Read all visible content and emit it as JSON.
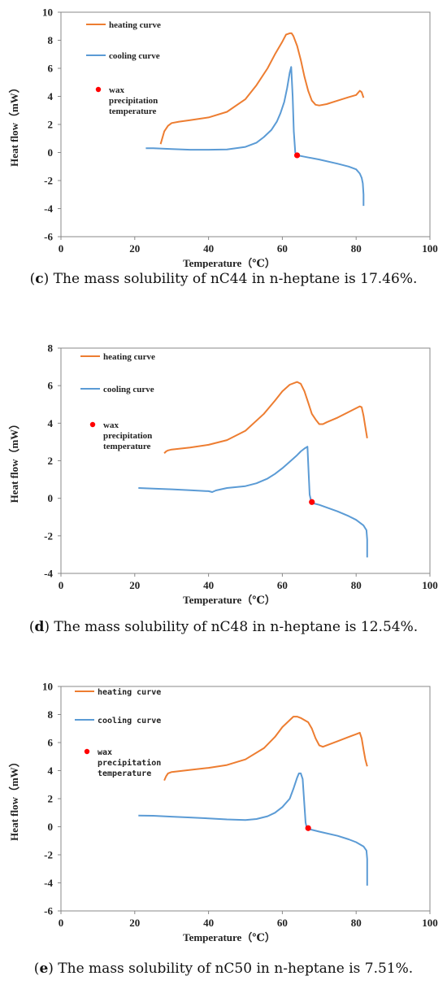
{
  "chart_data": [
    {
      "type": "line",
      "panel": "c",
      "caption_letter": "c",
      "caption_text": " The mass solubility of nC44 in n-heptane is 17.46%.",
      "xlabel": "Temperature（℃）",
      "ylabel": "Heat flow（mW）",
      "xlim": [
        0,
        100
      ],
      "ylim": [
        -6,
        10
      ],
      "xticks": [
        0,
        20,
        40,
        60,
        80,
        100
      ],
      "yticks": [
        -6,
        -4,
        -2,
        0,
        2,
        4,
        6,
        8,
        10
      ],
      "legend_position": "top-left",
      "legend_font": "serif",
      "series": [
        {
          "name": "heating curve",
          "color": "#ED7D31",
          "x": [
            27,
            28,
            29,
            30,
            32,
            35,
            40,
            45,
            50,
            53,
            56,
            58,
            60,
            61,
            62,
            62.5,
            63,
            64,
            65,
            66,
            67,
            68,
            69,
            70,
            72,
            75,
            78,
            80,
            81,
            81.5,
            82
          ],
          "y": [
            0.6,
            1.5,
            1.9,
            2.1,
            2.2,
            2.3,
            2.5,
            2.9,
            3.8,
            4.8,
            6.0,
            7.0,
            7.9,
            8.4,
            8.5,
            8.5,
            8.3,
            7.6,
            6.6,
            5.4,
            4.4,
            3.7,
            3.4,
            3.35,
            3.45,
            3.7,
            3.95,
            4.1,
            4.4,
            4.3,
            3.9
          ]
        },
        {
          "name": "cooling curve",
          "color": "#5B9BD5",
          "x": [
            23,
            25,
            30,
            35,
            40,
            45,
            50,
            53,
            55,
            57,
            58.5,
            59.5,
            60.5,
            61.3,
            62,
            62.4,
            62.8,
            63.1,
            63.5,
            64,
            66,
            70,
            75,
            78,
            80,
            81,
            81.5,
            81.8,
            82,
            82,
            82
          ],
          "y": [
            0.3,
            0.3,
            0.25,
            0.2,
            0.2,
            0.22,
            0.4,
            0.7,
            1.1,
            1.6,
            2.2,
            2.8,
            3.6,
            4.6,
            5.7,
            6.1,
            4.0,
            1.5,
            0.0,
            -0.2,
            -0.3,
            -0.5,
            -0.8,
            -1.0,
            -1.2,
            -1.5,
            -1.8,
            -2.2,
            -3.0,
            -3.6,
            -3.8
          ]
        }
      ],
      "marker": {
        "label_lines": [
          "wax",
          "precipitation",
          "temperature"
        ],
        "color": "#FF0000",
        "x": 64,
        "y": -0.2
      }
    },
    {
      "type": "line",
      "panel": "d",
      "caption_letter": "d",
      "caption_text": " The mass solubility of nC48 in n-heptane is 12.54%.",
      "xlabel": "Temperature（℃）",
      "ylabel": "Heat flow（mW）",
      "xlim": [
        0,
        100
      ],
      "ylim": [
        -4,
        8
      ],
      "xticks": [
        0,
        20,
        40,
        60,
        80,
        100
      ],
      "yticks": [
        -4,
        -2,
        0,
        2,
        4,
        6,
        8
      ],
      "legend_position": "top-left",
      "legend_font": "serif",
      "series": [
        {
          "name": "heating curve",
          "color": "#ED7D31",
          "x": [
            28,
            28.5,
            29,
            30,
            35,
            40,
            45,
            50,
            55,
            58,
            60,
            62,
            64,
            65,
            66,
            67,
            68,
            69,
            70,
            71,
            72,
            75,
            78,
            80,
            81,
            81.5,
            82,
            82.5,
            83
          ],
          "y": [
            2.4,
            2.5,
            2.55,
            2.6,
            2.7,
            2.85,
            3.1,
            3.6,
            4.5,
            5.2,
            5.7,
            6.05,
            6.2,
            6.1,
            5.7,
            5.1,
            4.5,
            4.2,
            3.95,
            3.95,
            4.05,
            4.3,
            4.6,
            4.8,
            4.9,
            4.85,
            4.4,
            3.8,
            3.2
          ]
        },
        {
          "name": "cooling curve",
          "color": "#5B9BD5",
          "x": [
            21,
            25,
            30,
            35,
            40,
            41,
            42,
            45,
            50,
            53,
            56,
            58,
            60,
            62,
            64,
            65,
            66,
            66.8,
            67.1,
            67.4,
            67.8,
            68,
            70,
            75,
            78,
            80,
            82,
            82.8,
            83,
            83,
            83
          ],
          "y": [
            0.55,
            0.52,
            0.48,
            0.43,
            0.38,
            0.33,
            0.42,
            0.55,
            0.65,
            0.8,
            1.05,
            1.3,
            1.6,
            1.95,
            2.3,
            2.5,
            2.65,
            2.75,
            1.5,
            0.2,
            -0.15,
            -0.25,
            -0.35,
            -0.7,
            -0.95,
            -1.15,
            -1.45,
            -1.7,
            -2.2,
            -2.8,
            -3.15
          ]
        }
      ],
      "marker": {
        "label_lines": [
          "wax",
          "precipitation",
          "temperature"
        ],
        "color": "#FF0000",
        "x": 68,
        "y": -0.2
      }
    },
    {
      "type": "line",
      "panel": "e",
      "caption_letter": "e",
      "caption_text": " The mass solubility of nC50 in n-heptane is 7.51%.",
      "xlabel": "Temperature（℃）",
      "ylabel": "Heat flow（mW）",
      "xlim": [
        0,
        100
      ],
      "ylim": [
        -6,
        10
      ],
      "xticks": [
        0,
        20,
        40,
        60,
        80,
        100
      ],
      "yticks": [
        -6,
        -4,
        -2,
        0,
        2,
        4,
        6,
        8,
        10
      ],
      "legend_position": "top-left",
      "legend_font": "mono",
      "series": [
        {
          "name": "heating curve",
          "color": "#ED7D31",
          "x": [
            28,
            28.5,
            29,
            30,
            35,
            40,
            45,
            50,
            55,
            58,
            60,
            62,
            63,
            64,
            65,
            66,
            67,
            68,
            69,
            70,
            71,
            72,
            75,
            78,
            80,
            81,
            81.5,
            82,
            82.5,
            83
          ],
          "y": [
            3.3,
            3.6,
            3.8,
            3.9,
            4.05,
            4.2,
            4.4,
            4.8,
            5.6,
            6.4,
            7.1,
            7.6,
            7.85,
            7.85,
            7.75,
            7.6,
            7.45,
            7.0,
            6.3,
            5.8,
            5.7,
            5.8,
            6.1,
            6.4,
            6.6,
            6.7,
            6.3,
            5.5,
            4.8,
            4.3
          ]
        },
        {
          "name": "cooling curve",
          "color": "#5B9BD5",
          "x": [
            21,
            25,
            30,
            35,
            40,
            45,
            50,
            53,
            56,
            58,
            60,
            62,
            63,
            64,
            64.5,
            65,
            65.5,
            66,
            66.3,
            66.6,
            67,
            70,
            75,
            78,
            80,
            82,
            82.8,
            83,
            83,
            83
          ],
          "y": [
            0.8,
            0.78,
            0.72,
            0.66,
            0.6,
            0.52,
            0.48,
            0.55,
            0.75,
            1.0,
            1.4,
            2.0,
            2.7,
            3.5,
            3.8,
            3.8,
            3.4,
            1.5,
            0.3,
            -0.05,
            -0.15,
            -0.35,
            -0.65,
            -0.9,
            -1.1,
            -1.4,
            -1.7,
            -2.3,
            -3.3,
            -4.2
          ]
        }
      ],
      "marker": {
        "label_lines": [
          "wax",
          "precipitation",
          "temperature"
        ],
        "color": "#FF0000",
        "x": 67,
        "y": -0.1
      }
    }
  ]
}
